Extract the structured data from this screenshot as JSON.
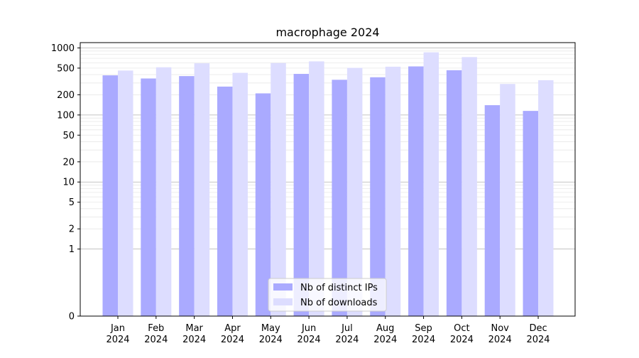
{
  "chart_data": {
    "type": "bar",
    "title": "macrophage 2024",
    "xlabel": "",
    "ylabel": "",
    "y_scale": "symlog",
    "ylim": [
      0,
      1200
    ],
    "y_ticks": [
      0,
      1,
      2,
      5,
      10,
      20,
      50,
      100,
      200,
      500,
      1000
    ],
    "grid": "horizontal",
    "legend_position": "bottom-center",
    "categories": [
      [
        "Jan",
        "2024"
      ],
      [
        "Feb",
        "2024"
      ],
      [
        "Mar",
        "2024"
      ],
      [
        "Apr",
        "2024"
      ],
      [
        "May",
        "2024"
      ],
      [
        "Jun",
        "2024"
      ],
      [
        "Jul",
        "2024"
      ],
      [
        "Aug",
        "2024"
      ],
      [
        "Sep",
        "2024"
      ],
      [
        "Oct",
        "2024"
      ],
      [
        "Nov",
        "2024"
      ],
      [
        "Dec",
        "2024"
      ]
    ],
    "series": [
      {
        "name": "Nb of distinct IPs",
        "color": "#aaaaff",
        "values": [
          390,
          350,
          380,
          265,
          210,
          410,
          335,
          365,
          530,
          465,
          140,
          115
        ]
      },
      {
        "name": "Nb of downloads",
        "color": "#ddddff",
        "values": [
          460,
          515,
          590,
          425,
          595,
          630,
          505,
          525,
          860,
          730,
          290,
          330
        ]
      }
    ]
  }
}
